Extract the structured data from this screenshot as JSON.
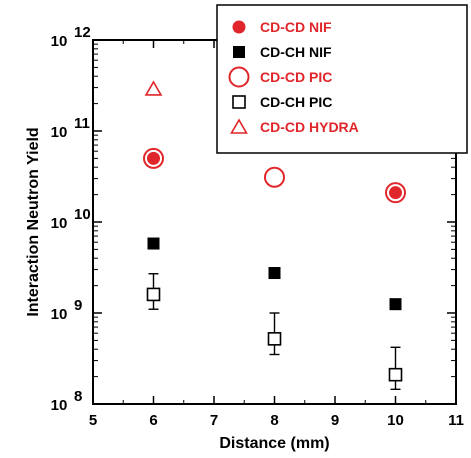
{
  "chart_data": {
    "type": "scatter",
    "xlabel": "Distance (mm)",
    "ylabel": "Interaction Neutron Yield",
    "xlim": [
      5,
      11
    ],
    "ylim": [
      100000000.0,
      1000000000000.0
    ],
    "yscale": "log",
    "xticks": [
      "5",
      "6",
      "7",
      "8",
      "9",
      "10",
      "11"
    ],
    "yticks": [
      {
        "base": "10",
        "exp": "8",
        "value": 100000000.0
      },
      {
        "base": "10",
        "exp": "9",
        "value": 1000000000.0
      },
      {
        "base": "10",
        "exp": "10",
        "value": 10000000000.0
      },
      {
        "base": "10",
        "exp": "11",
        "value": 100000000000.0
      },
      {
        "base": "10",
        "exp": "12",
        "value": 1000000000000.0
      }
    ],
    "legend_position": "top-right",
    "series": [
      {
        "name": "CD-CD NIF",
        "marker": "filled-circle",
        "color": "#e0262a",
        "x": [
          6,
          10
        ],
        "y": [
          50000000000.0,
          21000000000.0
        ]
      },
      {
        "name": "CD-CH NIF",
        "marker": "filled-square",
        "color": "#000000",
        "x": [
          6,
          8,
          10
        ],
        "y": [
          5800000000.0,
          2750000000.0,
          1250000000.0
        ]
      },
      {
        "name": "CD-CD PIC",
        "marker": "open-circle",
        "color": "#e0262a",
        "x": [
          6,
          8,
          10
        ],
        "y": [
          50000000000.0,
          31000000000.0,
          21000000000.0
        ]
      },
      {
        "name": "CD-CH PIC",
        "marker": "open-square",
        "color": "#000000",
        "x": [
          6,
          8,
          10
        ],
        "y": [
          1600000000.0,
          520000000.0,
          210000000.0
        ],
        "yerr_low": [
          1100000000.0,
          350000000.0,
          145000000.0
        ],
        "yerr_high": [
          2700000000.0,
          1000000000.0,
          420000000.0
        ]
      },
      {
        "name": "CD-CD HYDRA",
        "marker": "open-triangle",
        "color": "#e0262a",
        "x": [
          6
        ],
        "y": [
          290000000000.0
        ]
      }
    ]
  }
}
